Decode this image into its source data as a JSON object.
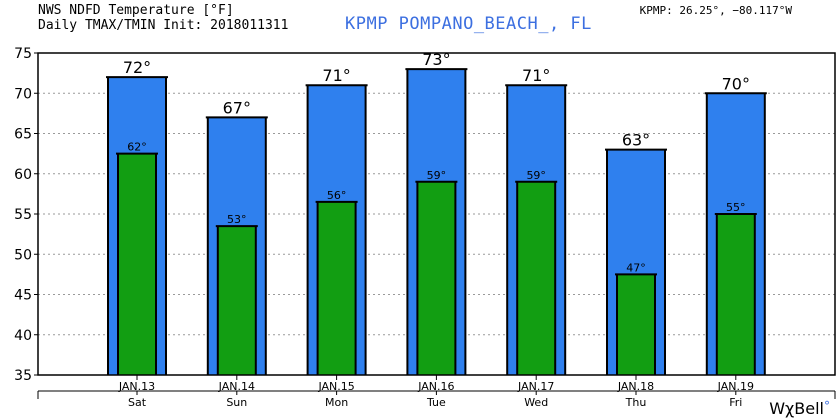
{
  "header": {
    "title": "NWS NDFD Temperature [°F]",
    "subtitle": "Daily TMAX/TMIN Init: 2018011311",
    "location": "KPMP POMPANO_BEACH_, FL",
    "coords": "KPMP: 26.25°, −80.117°W"
  },
  "brand": {
    "name": "WχBell",
    "mark": "°"
  },
  "colors": {
    "max_bar": "#2f80ee",
    "min_bar": "#129e12",
    "outline": "#000000",
    "grid": "#9a9a9a"
  },
  "chart_data": {
    "type": "bar",
    "title": "NWS NDFD Temperature [°F]",
    "subtitle": "Daily TMAX/TMIN Init: 2018011311",
    "categories": [
      "JAN.13",
      "JAN.14",
      "JAN.15",
      "JAN.16",
      "JAN.17",
      "JAN.18",
      "JAN.19"
    ],
    "days": [
      "Sat",
      "Sun",
      "Mon",
      "Tue",
      "Wed",
      "Thu",
      "Fri"
    ],
    "series": [
      {
        "name": "TMAX",
        "values": [
          72,
          67,
          71,
          73,
          71,
          63,
          70
        ],
        "labels": [
          "72°",
          "67°",
          "71°",
          "73°",
          "71°",
          "63°",
          "70°"
        ]
      },
      {
        "name": "TMIN",
        "values": [
          62.5,
          53.5,
          56.5,
          59,
          59,
          47.5,
          55
        ],
        "labels": [
          "62°",
          "53°",
          "56°",
          "59°",
          "59°",
          "47°",
          "55°"
        ]
      }
    ],
    "ylim": [
      35,
      75
    ],
    "yticks": [
      "35",
      "40",
      "45",
      "50",
      "55",
      "60",
      "65",
      "70",
      "75"
    ],
    "grid": true
  }
}
